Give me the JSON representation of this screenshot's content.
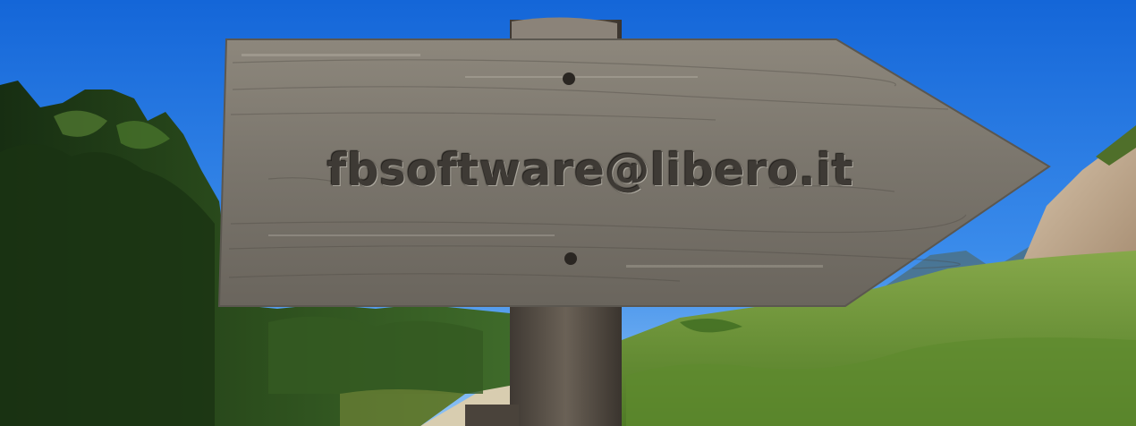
{
  "scene": {
    "description_colors": {
      "sky_top": "#1466d8",
      "sky_bottom": "#5aa6f0",
      "trees_dark": "#1f3a17",
      "trees_mid": "#3f6b2a",
      "grass": "#6f9a3c",
      "rock": "#c8b49a",
      "wood_light": "#8f8a80",
      "wood_dark": "#4d4944",
      "post": "#5b5349"
    },
    "sign": {
      "text": "fbsoftware@libero.it"
    }
  }
}
